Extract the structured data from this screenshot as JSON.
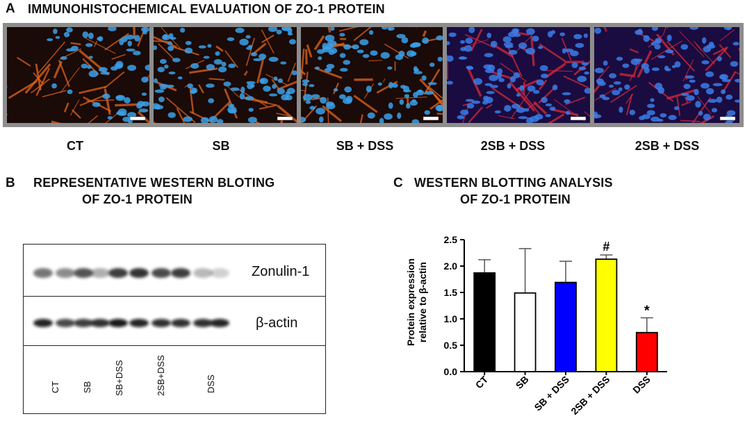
{
  "panel_a": {
    "letter": "A",
    "title": "IMMUNOHISTOCHEMICAL EVALUATION OF ZO-1 PROTEIN",
    "images": [
      {
        "label": "CT",
        "color_tissue": "#e0641c",
        "color_nuclei": "#3aa0e8"
      },
      {
        "label": "SB",
        "color_tissue": "#e0641c",
        "color_nuclei": "#3aa0e8"
      },
      {
        "label": "SB + DSS",
        "color_tissue": "#e0641c",
        "color_nuclei": "#3aa0e8"
      },
      {
        "label": "2SB + DSS",
        "color_tissue": "#d8283a",
        "color_nuclei": "#3a7ce8"
      },
      {
        "label": "2SB + DSS",
        "color_tissue": "#d8283a",
        "color_nuclei": "#3a7ce8"
      }
    ]
  },
  "panel_b": {
    "letter": "B",
    "title_line1": "REPRESENTATIVE WESTERN BLOTING",
    "title_line2": "OF ZO-1 PROTEIN",
    "band_labels": [
      "Zonulin-1",
      "β-actin"
    ],
    "lane_labels": [
      "CT",
      "SB",
      "SB+DSS",
      "2SB+DSS",
      "DSS"
    ]
  },
  "panel_c": {
    "letter": "C",
    "title_line1": "WESTERN BLOTTING ANALYSIS",
    "title_line2": "OF ZO-1 PROTEIN"
  },
  "chart_data": {
    "type": "bar",
    "title": "WESTERN BLOTTING ANALYSIS OF ZO-1 PROTEIN",
    "categories": [
      "CT",
      "SB",
      "SB + DSS",
      "2SB + DSS",
      "DSS"
    ],
    "values": [
      1.87,
      1.49,
      1.69,
      2.13,
      0.74
    ],
    "errors": [
      0.25,
      0.84,
      0.4,
      0.08,
      0.28
    ],
    "colors": [
      "#000000",
      "#ffffff",
      "#0000ff",
      "#ffff00",
      "#ff0000"
    ],
    "annotations": [
      "",
      "",
      "",
      "#",
      "*"
    ],
    "ylabel_line1": "Protein expression",
    "ylabel_line2": "relative to β-actin",
    "xlabel": "",
    "ylim": [
      0,
      2.5
    ],
    "yticks": [
      "0.0",
      "0.5",
      "1.0",
      "1.5",
      "2.0",
      "2.5"
    ],
    "grid": false,
    "legend": "none"
  }
}
